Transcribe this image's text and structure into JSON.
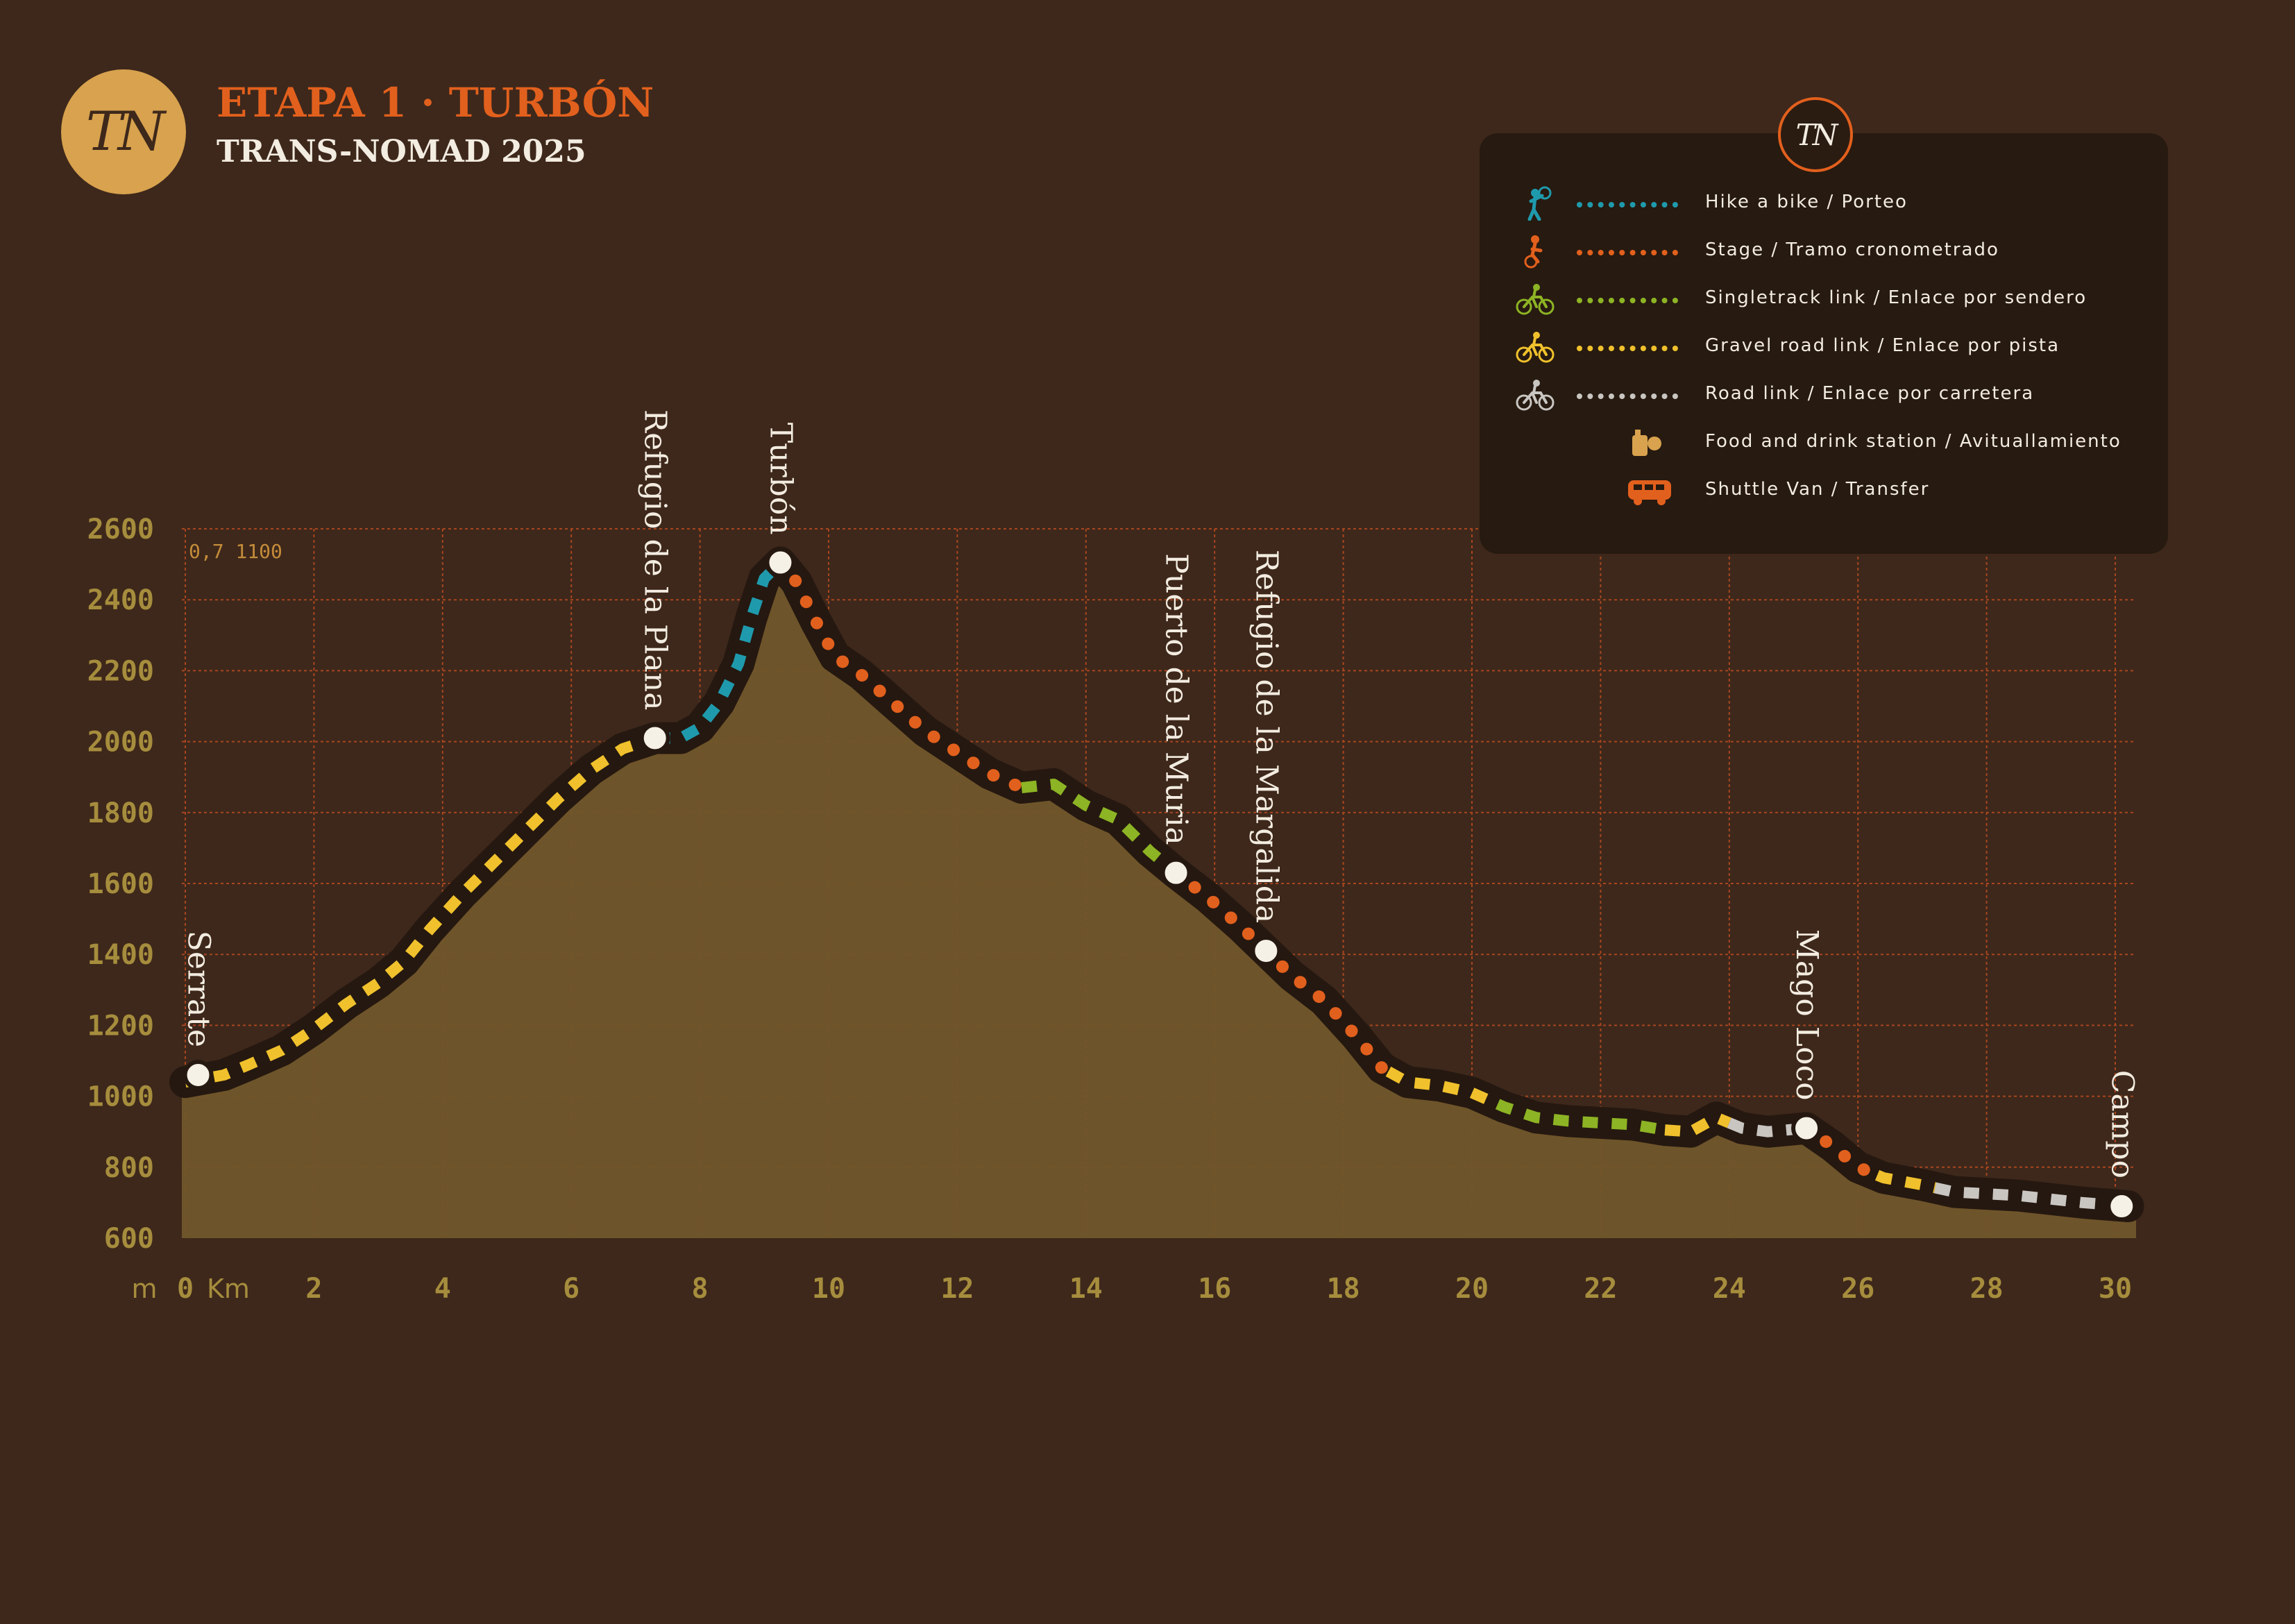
{
  "header": {
    "logo_text": "TN",
    "stage_title": "ETAPA 1 · TURBÓN",
    "event_title": "TRANS-NOMAD 2025"
  },
  "legend": {
    "badge_text": "TN",
    "items": [
      {
        "label": "Hike a bike / Porteo",
        "icon": "hike-a-bike-icon",
        "color": "#1f9aad",
        "line": true
      },
      {
        "label": "Stage / Tramo cronometrado",
        "icon": "downhill-rider-icon",
        "color": "#e2601d",
        "line": true
      },
      {
        "label": "Singletrack link / Enlace por sendero",
        "icon": "singletrack-cyclist-icon",
        "color": "#8db424",
        "line": true
      },
      {
        "label": "Gravel road link / Enlace por pista",
        "icon": "gravel-cyclist-icon",
        "color": "#f0c12c",
        "line": true
      },
      {
        "label": "Road link / Enlace por carretera",
        "icon": "road-cyclist-icon",
        "color": "#c9c6c2",
        "line": true
      },
      {
        "label": "Food and drink station / Avituallamiento",
        "icon": "food-station-icon",
        "color": "#d8a24e",
        "line": false
      },
      {
        "label": "Shuttle Van / Transfer",
        "icon": "shuttle-van-icon",
        "color": "#e2601d",
        "line": false
      }
    ]
  },
  "chart_data": {
    "type": "area",
    "x_unit": "Km",
    "y_unit": "m",
    "xlim": [
      0,
      30.4
    ],
    "ylim": [
      600,
      2600
    ],
    "x_ticks": [
      0,
      2,
      4,
      6,
      8,
      10,
      12,
      14,
      16,
      18,
      20,
      22,
      24,
      26,
      28,
      30
    ],
    "y_ticks": [
      600,
      800,
      1000,
      1200,
      1400,
      1600,
      1800,
      2000,
      2200,
      2400,
      2600
    ],
    "corner_annotation": "0,7  1100",
    "grid": true,
    "profile": [
      [
        0,
        1040
      ],
      [
        0.6,
        1060
      ],
      [
        1,
        1090
      ],
      [
        1.5,
        1130
      ],
      [
        2,
        1190
      ],
      [
        2.5,
        1260
      ],
      [
        3,
        1320
      ],
      [
        3.4,
        1380
      ],
      [
        3.8,
        1470
      ],
      [
        4.3,
        1570
      ],
      [
        4.8,
        1660
      ],
      [
        5.3,
        1750
      ],
      [
        5.8,
        1840
      ],
      [
        6.3,
        1920
      ],
      [
        6.8,
        1980
      ],
      [
        7.3,
        2010
      ],
      [
        7.7,
        2010
      ],
      [
        8,
        2040
      ],
      [
        8.3,
        2110
      ],
      [
        8.6,
        2220
      ],
      [
        8.8,
        2350
      ],
      [
        9,
        2460
      ],
      [
        9.25,
        2505
      ],
      [
        9.5,
        2450
      ],
      [
        9.8,
        2340
      ],
      [
        10.1,
        2240
      ],
      [
        10.5,
        2190
      ],
      [
        11,
        2110
      ],
      [
        11.5,
        2030
      ],
      [
        12,
        1970
      ],
      [
        12.5,
        1910
      ],
      [
        13,
        1870
      ],
      [
        13.5,
        1880
      ],
      [
        14,
        1820
      ],
      [
        14.5,
        1780
      ],
      [
        15,
        1690
      ],
      [
        15.4,
        1630
      ],
      [
        15.9,
        1560
      ],
      [
        16.4,
        1480
      ],
      [
        16.8,
        1410
      ],
      [
        17.2,
        1340
      ],
      [
        17.7,
        1270
      ],
      [
        18.2,
        1170
      ],
      [
        18.6,
        1080
      ],
      [
        19,
        1040
      ],
      [
        19.5,
        1030
      ],
      [
        20,
        1010
      ],
      [
        20.5,
        970
      ],
      [
        21,
        940
      ],
      [
        21.5,
        930
      ],
      [
        22,
        925
      ],
      [
        22.5,
        920
      ],
      [
        23,
        905
      ],
      [
        23.4,
        900
      ],
      [
        23.8,
        940
      ],
      [
        24.2,
        910
      ],
      [
        24.6,
        900
      ],
      [
        25.2,
        910
      ],
      [
        25.6,
        860
      ],
      [
        26,
        800
      ],
      [
        26.4,
        770
      ],
      [
        27,
        750
      ],
      [
        27.5,
        730
      ],
      [
        28,
        725
      ],
      [
        28.5,
        720
      ],
      [
        29,
        710
      ],
      [
        29.5,
        700
      ],
      [
        30.2,
        690
      ]
    ],
    "segments": [
      {
        "type": "gravel",
        "from": 0,
        "to": 7.3
      },
      {
        "type": "hike",
        "from": 7.3,
        "to": 9.25
      },
      {
        "type": "stage",
        "from": 9.25,
        "to": 13
      },
      {
        "type": "singletrack",
        "from": 13,
        "to": 15.4
      },
      {
        "type": "stage",
        "from": 15.4,
        "to": 18.7
      },
      {
        "type": "gravel",
        "from": 18.7,
        "to": 20.4
      },
      {
        "type": "singletrack",
        "from": 20.4,
        "to": 23
      },
      {
        "type": "gravel",
        "from": 23,
        "to": 24
      },
      {
        "type": "road",
        "from": 24,
        "to": 25.2
      },
      {
        "type": "stage",
        "from": 25.2,
        "to": 26.3
      },
      {
        "type": "gravel",
        "from": 26.3,
        "to": 27.2
      },
      {
        "type": "road",
        "from": 27.2,
        "to": 30.2
      }
    ],
    "waypoints": [
      {
        "name": "Serrate",
        "km": 0.2,
        "ele": 1060
      },
      {
        "name": "Refugio de la Plana",
        "km": 7.3,
        "ele": 2010
      },
      {
        "name": "Turbón",
        "km": 9.25,
        "ele": 2505
      },
      {
        "name": "Puerto de la Muria",
        "km": 15.4,
        "ele": 1630
      },
      {
        "name": "Refugio de la Margalida",
        "km": 16.8,
        "ele": 1410
      },
      {
        "name": "Mago Loco",
        "km": 25.2,
        "ele": 910
      },
      {
        "name": "Campo",
        "km": 30.1,
        "ele": 690
      }
    ],
    "colors": {
      "hike": "#1f9aad",
      "stage": "#e2601d",
      "singletrack": "#8db424",
      "gravel": "#f0c12c",
      "road": "#c9c6c2",
      "area": "#71562b",
      "outline": "#251810",
      "grid": "#a8461f"
    }
  }
}
